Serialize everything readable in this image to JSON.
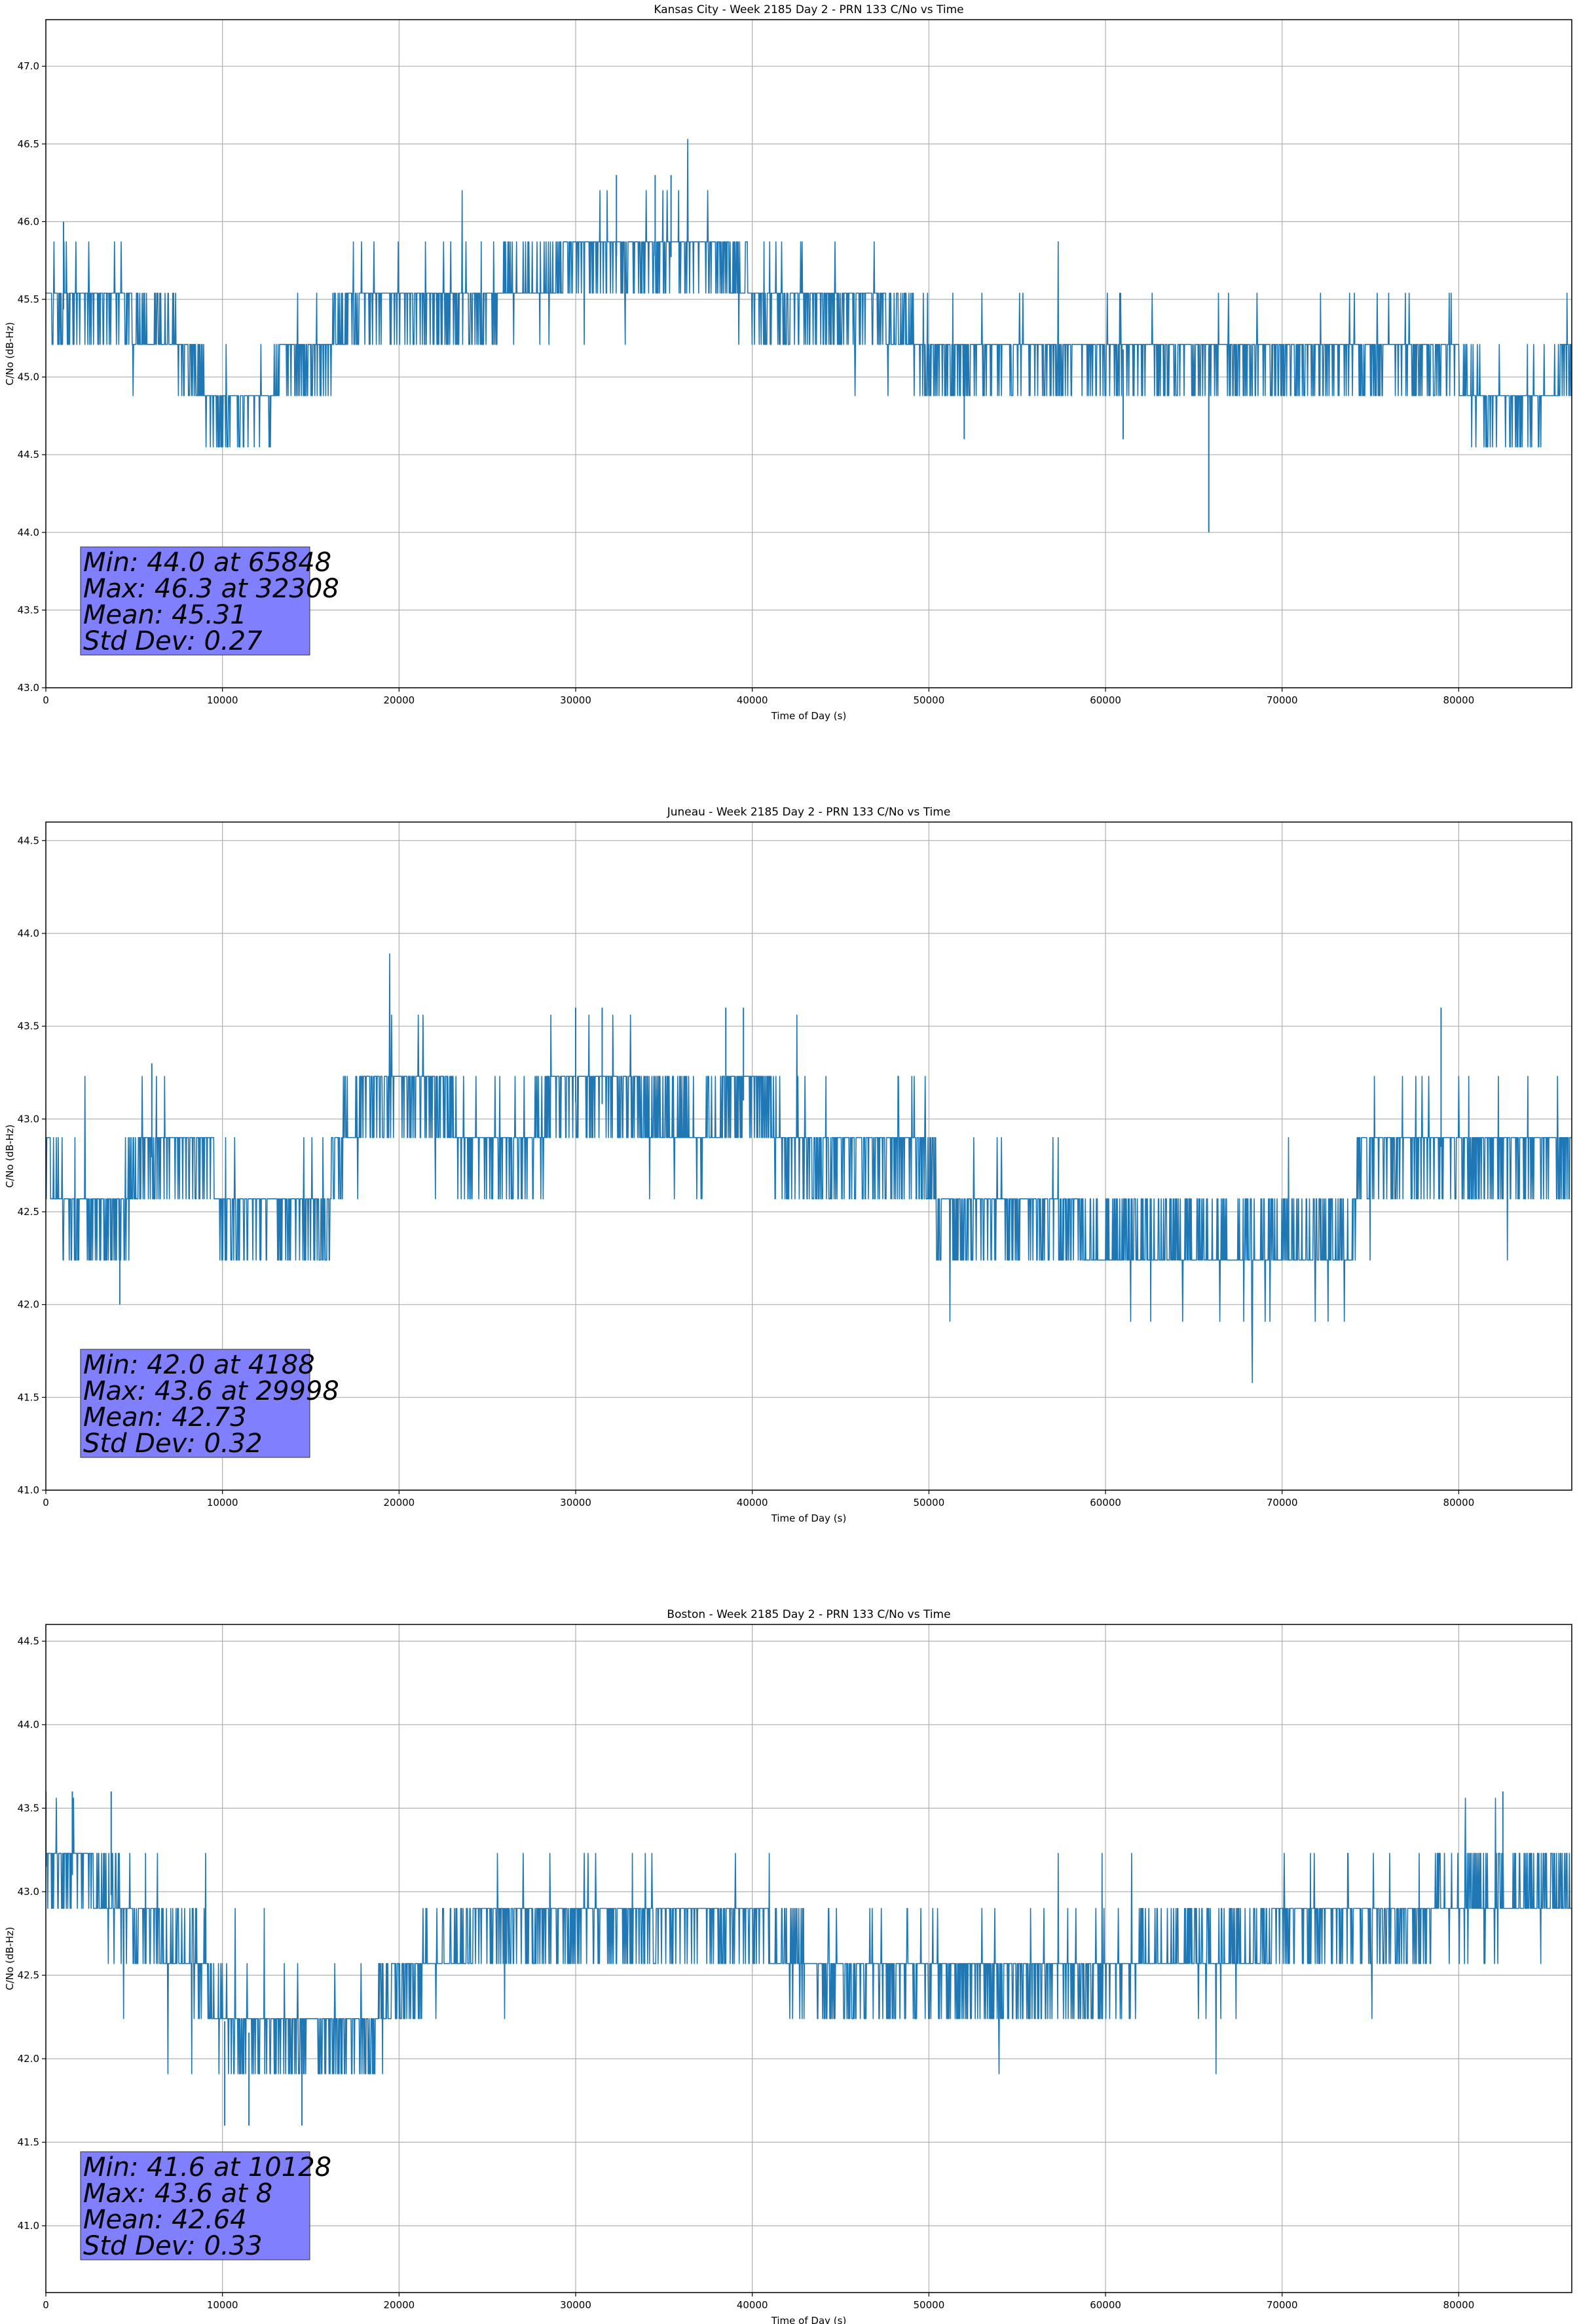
{
  "colors": {
    "line": "#1f77b4",
    "grid": "#b0b0b0",
    "statbox": "#8080ff"
  },
  "chart_data": [
    {
      "type": "line",
      "title": "Kansas City - Week 2185 Day 2 - PRN 133 C/No vs Time",
      "xlabel": "Time of Day (s)",
      "ylabel": "C/No (dB-Hz)",
      "xlim": [
        0,
        86400
      ],
      "ylim": [
        43.0,
        47.3
      ],
      "xticks": [
        0,
        10000,
        20000,
        30000,
        40000,
        50000,
        60000,
        70000,
        80000
      ],
      "xtick_labels": [
        "0",
        "10000",
        "20000",
        "30000",
        "40000",
        "50000",
        "60000",
        "70000",
        "80000"
      ],
      "yticks": [
        43.0,
        43.5,
        44.0,
        44.5,
        45.0,
        45.5,
        46.0,
        46.5,
        47.0
      ],
      "ytick_labels": [
        "43.0",
        "43.5",
        "44.0",
        "44.5",
        "45.0",
        "45.5",
        "46.0",
        "46.5",
        "47.0"
      ],
      "grid": true,
      "quant_step": 0.33,
      "noise_std": 0.27,
      "trend": [
        [
          0,
          45.45
        ],
        [
          6500,
          45.35
        ],
        [
          8500,
          45.05
        ],
        [
          9500,
          44.75
        ],
        [
          12500,
          44.75
        ],
        [
          13500,
          45.15
        ],
        [
          16000,
          45.15
        ],
        [
          17000,
          45.4
        ],
        [
          25000,
          45.5
        ],
        [
          28000,
          45.65
        ],
        [
          31000,
          45.78
        ],
        [
          35000,
          45.78
        ],
        [
          39000,
          45.7
        ],
        [
          40500,
          45.45
        ],
        [
          46000,
          45.45
        ],
        [
          48000,
          45.35
        ],
        [
          50000,
          45.15
        ],
        [
          70000,
          45.2
        ],
        [
          71500,
          45.15
        ],
        [
          80000,
          45.05
        ],
        [
          82000,
          44.8
        ],
        [
          84500,
          44.85
        ],
        [
          86400,
          45.15
        ]
      ],
      "spikes": [
        [
          65848,
          44.0
        ],
        [
          32308,
          46.3
        ],
        [
          34500,
          46.3
        ],
        [
          35400,
          46.3
        ],
        [
          1000,
          46.0
        ],
        [
          52000,
          44.6
        ],
        [
          61000,
          44.6
        ]
      ],
      "stats": {
        "min": "Min: 44.0 at 65848",
        "max": "Max: 46.3 at 32308",
        "mean": "Mean: 45.31",
        "std": "Std Dev: 0.27"
      }
    },
    {
      "type": "line",
      "title": "Juneau - Week 2185 Day 2 - PRN 133 C/No vs Time",
      "xlabel": "Time of Day (s)",
      "ylabel": "C/No (dB-Hz)",
      "xlim": [
        0,
        86400
      ],
      "ylim": [
        41.0,
        44.6
      ],
      "xticks": [
        0,
        10000,
        20000,
        30000,
        40000,
        50000,
        60000,
        70000,
        80000
      ],
      "xtick_labels": [
        "0",
        "10000",
        "20000",
        "30000",
        "40000",
        "50000",
        "60000",
        "70000",
        "80000"
      ],
      "yticks": [
        41.0,
        41.5,
        42.0,
        42.5,
        43.0,
        43.5,
        44.0,
        44.5
      ],
      "ytick_labels": [
        "41.0",
        "41.5",
        "42.0",
        "42.5",
        "43.0",
        "43.5",
        "44.0",
        "44.5"
      ],
      "grid": true,
      "quant_step": 0.33,
      "noise_std": 0.32,
      "trend": [
        [
          0,
          42.8
        ],
        [
          1300,
          42.45
        ],
        [
          4200,
          42.5
        ],
        [
          5500,
          42.8
        ],
        [
          9500,
          42.75
        ],
        [
          10000,
          42.45
        ],
        [
          16000,
          42.45
        ],
        [
          16500,
          42.85
        ],
        [
          18000,
          43.1
        ],
        [
          22500,
          43.1
        ],
        [
          24000,
          42.85
        ],
        [
          27500,
          42.85
        ],
        [
          28500,
          43.1
        ],
        [
          36000,
          43.05
        ],
        [
          37000,
          42.85
        ],
        [
          38500,
          43.1
        ],
        [
          41000,
          43.1
        ],
        [
          42000,
          42.8
        ],
        [
          50000,
          42.8
        ],
        [
          50500,
          42.5
        ],
        [
          58000,
          42.55
        ],
        [
          59000,
          42.35
        ],
        [
          74000,
          42.4
        ],
        [
          74500,
          42.85
        ],
        [
          86400,
          42.85
        ]
      ],
      "spikes": [
        [
          4188,
          42.0
        ],
        [
          29998,
          43.6
        ],
        [
          31500,
          43.6
        ],
        [
          38500,
          43.6
        ],
        [
          39500,
          43.6
        ],
        [
          6000,
          43.3
        ],
        [
          79000,
          43.6
        ]
      ],
      "stats": {
        "min": "Min: 42.0 at 4188",
        "max": "Max: 43.6 at 29998",
        "mean": "Mean: 42.73",
        "std": "Std Dev: 0.32"
      }
    },
    {
      "type": "line",
      "title": "Boston - Week 2185 Day 2 - PRN 133 C/No vs Time",
      "xlabel": "Time of Day (s)",
      "ylabel": "C/No (dB-Hz)",
      "xlim": [
        0,
        86400
      ],
      "ylim": [
        40.6,
        44.6
      ],
      "xticks": [
        0,
        10000,
        20000,
        30000,
        40000,
        50000,
        60000,
        70000,
        80000
      ],
      "xtick_labels": [
        "0",
        "10000",
        "20000",
        "30000",
        "40000",
        "50000",
        "60000",
        "70000",
        "80000"
      ],
      "yticks": [
        41.0,
        41.5,
        42.0,
        42.5,
        43.0,
        43.5,
        44.0,
        44.5
      ],
      "ytick_labels": [
        "41.0",
        "41.5",
        "42.0",
        "42.5",
        "43.0",
        "43.5",
        "44.0",
        "44.5"
      ],
      "grid": true,
      "quant_step": 0.33,
      "noise_std": 0.33,
      "trend": [
        [
          0,
          43.15
        ],
        [
          3000,
          43.05
        ],
        [
          5500,
          42.8
        ],
        [
          8500,
          42.6
        ],
        [
          9500,
          42.35
        ],
        [
          10500,
          42.15
        ],
        [
          18500,
          42.2
        ],
        [
          19500,
          42.4
        ],
        [
          21000,
          42.55
        ],
        [
          24500,
          42.75
        ],
        [
          39000,
          42.8
        ],
        [
          42000,
          42.7
        ],
        [
          44500,
          42.45
        ],
        [
          55500,
          42.5
        ],
        [
          60000,
          42.5
        ],
        [
          65000,
          42.7
        ],
        [
          77500,
          42.8
        ],
        [
          78500,
          42.9
        ],
        [
          86400,
          43.0
        ]
      ],
      "spikes": [
        [
          10128,
          41.6
        ],
        [
          8,
          43.6
        ],
        [
          1500,
          43.6
        ],
        [
          3700,
          43.6
        ],
        [
          82500,
          43.6
        ],
        [
          11500,
          41.6
        ],
        [
          14500,
          41.6
        ]
      ],
      "stats": {
        "min": "Min: 41.6 at 10128",
        "max": "Max: 43.6 at 8",
        "mean": "Mean: 42.64",
        "std": "Std Dev: 0.33"
      }
    }
  ]
}
